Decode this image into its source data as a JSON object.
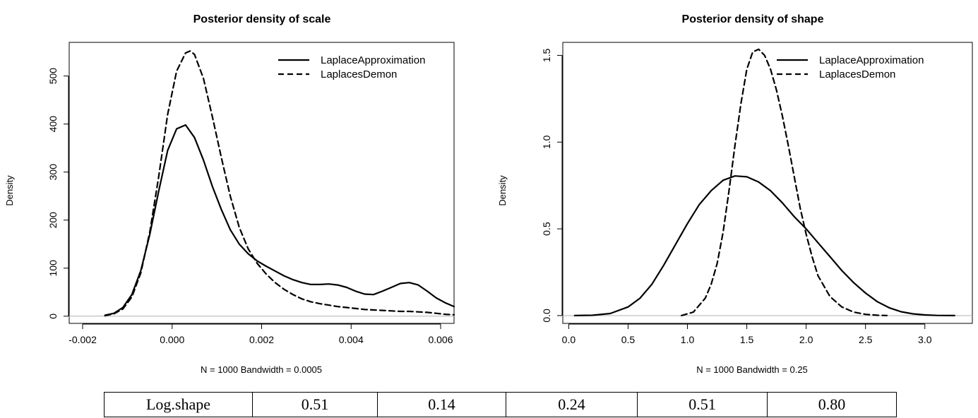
{
  "chart_data": [
    {
      "type": "line",
      "title": "Posterior density of scale",
      "xlabel": "N = 1000   Bandwidth = 0.0005",
      "ylabel": "Density",
      "xlim": [
        -0.0023,
        0.0063
      ],
      "ylim": [
        -15,
        570
      ],
      "xticks": [
        -0.002,
        0.0,
        0.002,
        0.004,
        0.006
      ],
      "xtick_labels": [
        "-0.002",
        "0.000",
        "0.002",
        "0.004",
        "0.006"
      ],
      "yticks": [
        0,
        100,
        200,
        300,
        400,
        500
      ],
      "ytick_labels": [
        "0",
        "100",
        "200",
        "300",
        "400",
        "500"
      ],
      "baseline": 0,
      "legend_position": "top-right",
      "series": [
        {
          "name": "LaplaceApproximation",
          "style": "solid",
          "x": [
            -0.0015,
            -0.0013,
            -0.0011,
            -0.0009,
            -0.0007,
            -0.0005,
            -0.0003,
            -0.0001,
            0.0001,
            0.0003,
            0.0005,
            0.0007,
            0.0009,
            0.0011,
            0.0013,
            0.0015,
            0.0017,
            0.0019,
            0.0021,
            0.0023,
            0.0025,
            0.0027,
            0.0029,
            0.0031,
            0.0033,
            0.0035,
            0.0037,
            0.0039,
            0.0041,
            0.0043,
            0.0045,
            0.0047,
            0.0049,
            0.0051,
            0.0053,
            0.0055,
            0.0057,
            0.0059,
            0.0061,
            0.0063
          ],
          "y": [
            2,
            6,
            18,
            45,
            95,
            170,
            260,
            345,
            390,
            398,
            372,
            325,
            270,
            222,
            180,
            150,
            130,
            115,
            104,
            94,
            84,
            76,
            70,
            66,
            66,
            67,
            65,
            60,
            52,
            46,
            45,
            52,
            60,
            68,
            70,
            65,
            52,
            38,
            28,
            20
          ]
        },
        {
          "name": "LaplacesDemon",
          "style": "dashed",
          "x": [
            -0.0015,
            -0.0013,
            -0.0011,
            -0.0009,
            -0.0007,
            -0.0005,
            -0.0003,
            -0.0001,
            0.0001,
            0.0003,
            0.0004,
            0.0005,
            0.0007,
            0.0009,
            0.0011,
            0.0013,
            0.0015,
            0.0017,
            0.0019,
            0.0021,
            0.0023,
            0.0025,
            0.0027,
            0.0029,
            0.0031,
            0.0033,
            0.0035,
            0.0037,
            0.0039,
            0.0041,
            0.0043,
            0.0045,
            0.0047,
            0.0049,
            0.0051,
            0.0053,
            0.0055,
            0.0057,
            0.0059,
            0.0061,
            0.0063
          ],
          "y": [
            1,
            5,
            15,
            40,
            90,
            175,
            290,
            420,
            510,
            548,
            552,
            545,
            495,
            415,
            330,
            250,
            185,
            140,
            110,
            88,
            70,
            56,
            45,
            36,
            30,
            26,
            23,
            20,
            18,
            16,
            14,
            13,
            12,
            11,
            10,
            10,
            9,
            8,
            6,
            4,
            3
          ]
        }
      ]
    },
    {
      "type": "line",
      "title": "Posterior density of shape",
      "xlabel": "N = 1000   Bandwidth = 0.25",
      "ylabel": "Density",
      "xlim": [
        -0.05,
        3.4
      ],
      "ylim": [
        -0.045,
        1.575
      ],
      "xticks": [
        0.0,
        0.5,
        1.0,
        1.5,
        2.0,
        2.5,
        3.0
      ],
      "xtick_labels": [
        "0.0",
        "0.5",
        "1.0",
        "1.5",
        "2.0",
        "2.5",
        "3.0"
      ],
      "yticks": [
        0.0,
        0.5,
        1.0,
        1.5
      ],
      "ytick_labels": [
        "0.0",
        "0.5",
        "1.0",
        "1.5"
      ],
      "baseline": 0,
      "legend_position": "top-right",
      "series": [
        {
          "name": "LaplaceApproximation",
          "style": "solid",
          "x": [
            0.05,
            0.2,
            0.35,
            0.5,
            0.6,
            0.7,
            0.8,
            0.9,
            1.0,
            1.1,
            1.2,
            1.3,
            1.4,
            1.5,
            1.6,
            1.7,
            1.8,
            1.9,
            2.0,
            2.1,
            2.2,
            2.3,
            2.4,
            2.5,
            2.6,
            2.7,
            2.8,
            2.9,
            3.0,
            3.1,
            3.25
          ],
          "y": [
            0.0,
            0.002,
            0.012,
            0.05,
            0.1,
            0.18,
            0.29,
            0.41,
            0.53,
            0.64,
            0.72,
            0.78,
            0.805,
            0.8,
            0.77,
            0.72,
            0.65,
            0.57,
            0.5,
            0.42,
            0.34,
            0.26,
            0.19,
            0.13,
            0.08,
            0.045,
            0.022,
            0.01,
            0.004,
            0.001,
            0.0
          ]
        },
        {
          "name": "LaplacesDemon",
          "style": "dashed",
          "x": [
            0.95,
            1.05,
            1.15,
            1.2,
            1.25,
            1.3,
            1.35,
            1.4,
            1.45,
            1.5,
            1.55,
            1.6,
            1.65,
            1.7,
            1.75,
            1.8,
            1.85,
            1.9,
            1.95,
            2.0,
            2.05,
            2.1,
            2.2,
            2.3,
            2.4,
            2.5,
            2.6,
            2.68
          ],
          "y": [
            0.0,
            0.02,
            0.1,
            0.18,
            0.3,
            0.48,
            0.72,
            0.98,
            1.22,
            1.42,
            1.52,
            1.535,
            1.5,
            1.42,
            1.3,
            1.15,
            0.98,
            0.8,
            0.62,
            0.47,
            0.34,
            0.23,
            0.11,
            0.05,
            0.02,
            0.007,
            0.002,
            0.0
          ]
        }
      ]
    }
  ],
  "table": {
    "rows": [
      [
        "Log.shape",
        "0.51",
        "0.14",
        "0.24",
        "0.51",
        "0.80"
      ]
    ]
  }
}
